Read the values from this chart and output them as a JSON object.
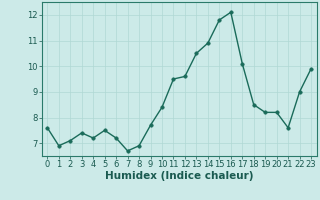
{
  "x": [
    0,
    1,
    2,
    3,
    4,
    5,
    6,
    7,
    8,
    9,
    10,
    11,
    12,
    13,
    14,
    15,
    16,
    17,
    18,
    19,
    20,
    21,
    22,
    23
  ],
  "y": [
    7.6,
    6.9,
    7.1,
    7.4,
    7.2,
    7.5,
    7.2,
    6.7,
    6.9,
    7.7,
    8.4,
    9.5,
    9.6,
    10.5,
    10.9,
    11.8,
    12.1,
    10.1,
    8.5,
    8.2,
    8.2,
    7.6,
    9.0,
    9.9
  ],
  "title": "",
  "xlabel": "Humidex (Indice chaleur)",
  "ylabel": "",
  "xlim": [
    -0.5,
    23.5
  ],
  "ylim": [
    6.5,
    12.5
  ],
  "yticks": [
    7,
    8,
    9,
    10,
    11,
    12
  ],
  "xticks": [
    0,
    1,
    2,
    3,
    4,
    5,
    6,
    7,
    8,
    9,
    10,
    11,
    12,
    13,
    14,
    15,
    16,
    17,
    18,
    19,
    20,
    21,
    22,
    23
  ],
  "line_color": "#1a6b5a",
  "marker_color": "#1a6b5a",
  "bg_color": "#cceae8",
  "grid_color": "#b0d8d4",
  "axis_color": "#2a7a6a",
  "text_color": "#1a5a50",
  "font_size_label": 7.5,
  "font_size_tick": 6.0,
  "line_width": 1.0,
  "marker_size": 2.5
}
